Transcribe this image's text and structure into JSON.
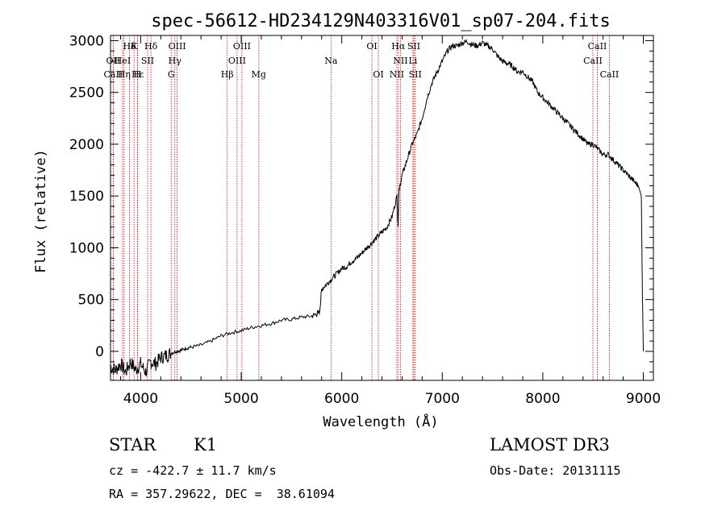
{
  "chart_data": {
    "type": "line",
    "title": "spec-56612-HD234129N403316V01_sp07-204.fits",
    "xlabel": "Wavelength (Å)",
    "ylabel": "Flux (relative)",
    "xlim": [
      3700,
      9100
    ],
    "ylim": [
      -280,
      3050
    ],
    "xticks": [
      4000,
      5000,
      6000,
      7000,
      8000,
      9000
    ],
    "yticks": [
      0,
      500,
      1000,
      1500,
      2000,
      2500,
      3000
    ],
    "grid": false,
    "series": [
      {
        "name": "flux",
        "x": [
          3700,
          3750,
          3800,
          3850,
          3900,
          3950,
          4000,
          4050,
          4100,
          4150,
          4200,
          4250,
          4300,
          4350,
          4400,
          4450,
          4500,
          4600,
          4700,
          4800,
          4900,
          5000,
          5100,
          5200,
          5300,
          5400,
          5500,
          5600,
          5700,
          5750,
          5780,
          5800,
          5850,
          5900,
          5950,
          6000,
          6050,
          6100,
          6150,
          6200,
          6250,
          6300,
          6350,
          6400,
          6450,
          6500,
          6550,
          6560,
          6570,
          6600,
          6650,
          6700,
          6750,
          6800,
          6850,
          6900,
          6950,
          7000,
          7050,
          7100,
          7150,
          7200,
          7250,
          7300,
          7350,
          7400,
          7450,
          7500,
          7550,
          7600,
          7650,
          7700,
          7750,
          7800,
          7850,
          7900,
          7950,
          8000,
          8050,
          8100,
          8150,
          8200,
          8250,
          8300,
          8350,
          8400,
          8450,
          8500,
          8550,
          8600,
          8650,
          8700,
          8750,
          8800,
          8850,
          8900,
          8950,
          8980,
          8990,
          9000
        ],
        "y": [
          -150,
          -180,
          -120,
          -200,
          -100,
          -180,
          -120,
          -200,
          -100,
          -120,
          -60,
          -40,
          -20,
          0,
          10,
          30,
          40,
          60,
          100,
          150,
          180,
          200,
          230,
          250,
          270,
          300,
          310,
          330,
          340,
          360,
          380,
          600,
          650,
          700,
          750,
          800,
          820,
          870,
          900,
          950,
          1000,
          1050,
          1100,
          1150,
          1200,
          1300,
          1500,
          1200,
          1550,
          1700,
          1850,
          2000,
          2100,
          2250,
          2450,
          2600,
          2700,
          2800,
          2900,
          2950,
          2950,
          2980,
          2990,
          2960,
          2950,
          2980,
          2950,
          2920,
          2850,
          2800,
          2780,
          2750,
          2700,
          2700,
          2650,
          2600,
          2500,
          2450,
          2400,
          2350,
          2300,
          2250,
          2200,
          2150,
          2100,
          2050,
          2000,
          2000,
          1950,
          1900,
          1900,
          1850,
          1800,
          1750,
          1700,
          1650,
          1600,
          1500,
          600,
          0
        ]
      }
    ],
    "spectral_lines": [
      {
        "label": "Hδ",
        "x": 3889,
        "row": 1
      },
      {
        "label": "K",
        "x": 3934,
        "row": 1
      },
      {
        "label": "Hδ",
        "x": 4102,
        "row": 1
      },
      {
        "label": "OIII",
        "x": 4363,
        "row": 1
      },
      {
        "label": "OIII",
        "x": 5007,
        "row": 1
      },
      {
        "label": "OI",
        "x": 6300,
        "row": 1
      },
      {
        "label": "Hα",
        "x": 6563,
        "row": 1
      },
      {
        "label": "SII",
        "x": 6717,
        "row": 1
      },
      {
        "label": "CaII",
        "x": 8542,
        "row": 1
      },
      {
        "label": "OII",
        "x": 3727,
        "row": 2
      },
      {
        "label": "HeI",
        "x": 3820,
        "row": 2
      },
      {
        "label": "SII",
        "x": 4069,
        "row": 2
      },
      {
        "label": "Hγ",
        "x": 4340,
        "row": 2
      },
      {
        "label": "OIII",
        "x": 4959,
        "row": 2
      },
      {
        "label": "Na",
        "x": 5893,
        "row": 2
      },
      {
        "label": "NII",
        "x": 6584,
        "row": 2
      },
      {
        "label": "Li",
        "x": 6708,
        "row": 2
      },
      {
        "label": "CaII",
        "x": 8498,
        "row": 2
      },
      {
        "label": "CaII",
        "x": 3727,
        "row": 3
      },
      {
        "label": "Hε",
        "x": 3970,
        "row": 3
      },
      {
        "label": "Hη",
        "x": 3835,
        "row": 3
      },
      {
        "label": "H",
        "x": 3968,
        "row": 3
      },
      {
        "label": "G",
        "x": 4304,
        "row": 3
      },
      {
        "label": "Hβ",
        "x": 4861,
        "row": 3
      },
      {
        "label": "Mg",
        "x": 5175,
        "row": 3
      },
      {
        "label": "OI",
        "x": 6364,
        "row": 3
      },
      {
        "label": "NII",
        "x": 6548,
        "row": 3
      },
      {
        "label": "SII",
        "x": 6731,
        "row": 3
      },
      {
        "label": "CaII",
        "x": 8662,
        "row": 3
      }
    ],
    "line_color": "#cc0000"
  },
  "info": {
    "object_class": "STAR",
    "subclass": "K1",
    "survey": "LAMOST DR3",
    "cz": "cz = -422.7 ± 11.7 km/s",
    "obs_date": "Obs-Date: 20131115",
    "radec": "RA = 357.29622, DEC =  38.61094"
  }
}
